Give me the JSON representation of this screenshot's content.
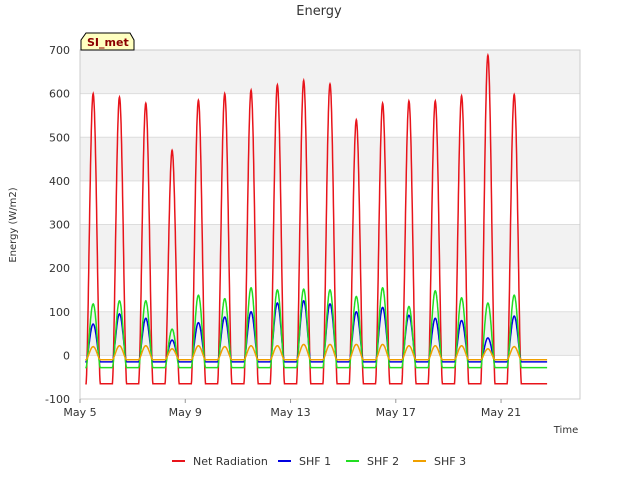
{
  "chart_data": {
    "type": "line",
    "title": "Energy",
    "xlabel": "Time",
    "ylabel": "Energy (W/m2)",
    "station_label": "SI_met",
    "ylim": [
      -100,
      700
    ],
    "yticks": [
      -100,
      0,
      100,
      200,
      300,
      400,
      500,
      600,
      700
    ],
    "xlim": [
      "2019-05-05",
      "2019-05-24"
    ],
    "xticks": [
      {
        "label": "May 5",
        "day": 5
      },
      {
        "label": "May 9",
        "day": 9
      },
      {
        "label": "May 13",
        "day": 13
      },
      {
        "label": "May 17",
        "day": 17
      },
      {
        "label": "May 21",
        "day": 21
      }
    ],
    "x_domain_days": [
      5.0,
      24.0
    ],
    "daily_peak_day_offset": 0.5,
    "grid": true,
    "legend_position": "bottom",
    "series": [
      {
        "name": "Net Radiation",
        "color": "#e8141b",
        "night_value": -65,
        "days": [
          5.5,
          6.5,
          7.5,
          8.5,
          9.5,
          10.5,
          11.5,
          12.5,
          13.5,
          14.5,
          15.5,
          16.5,
          17.5,
          18.5,
          19.5,
          20.5,
          21.5,
          22.5
        ],
        "peaks": [
          600,
          592,
          578,
          470,
          585,
          600,
          608,
          620,
          630,
          622,
          540,
          578,
          583,
          583,
          595,
          688,
          598,
          0
        ]
      },
      {
        "name": "SHF 1",
        "color": "#0000e0",
        "night_value": -15,
        "days": [
          5.5,
          6.5,
          7.5,
          8.5,
          9.5,
          10.5,
          11.5,
          12.5,
          13.5,
          14.5,
          15.5,
          16.5,
          17.5,
          18.5,
          19.5,
          20.5,
          21.5,
          22.5
        ],
        "peaks": [
          72,
          95,
          85,
          35,
          75,
          88,
          100,
          120,
          125,
          118,
          100,
          110,
          92,
          85,
          80,
          40,
          90,
          0
        ]
      },
      {
        "name": "SHF 2",
        "color": "#22dd22",
        "night_value": -28,
        "days": [
          5.5,
          6.5,
          7.5,
          8.5,
          9.5,
          10.5,
          11.5,
          12.5,
          13.5,
          14.5,
          15.5,
          16.5,
          17.5,
          18.5,
          19.5,
          20.5,
          21.5,
          22.5
        ],
        "peaks": [
          118,
          125,
          125,
          60,
          138,
          130,
          155,
          150,
          152,
          150,
          135,
          155,
          112,
          148,
          132,
          120,
          138,
          0
        ]
      },
      {
        "name": "SHF 3",
        "color": "#f0a000",
        "night_value": -10,
        "days": [
          5.5,
          6.5,
          7.5,
          8.5,
          9.5,
          10.5,
          11.5,
          12.5,
          13.5,
          14.5,
          15.5,
          16.5,
          17.5,
          18.5,
          19.5,
          20.5,
          21.5,
          22.5
        ],
        "peaks": [
          20,
          22,
          22,
          15,
          22,
          20,
          22,
          22,
          25,
          25,
          25,
          25,
          22,
          22,
          22,
          15,
          20,
          0
        ]
      }
    ]
  }
}
